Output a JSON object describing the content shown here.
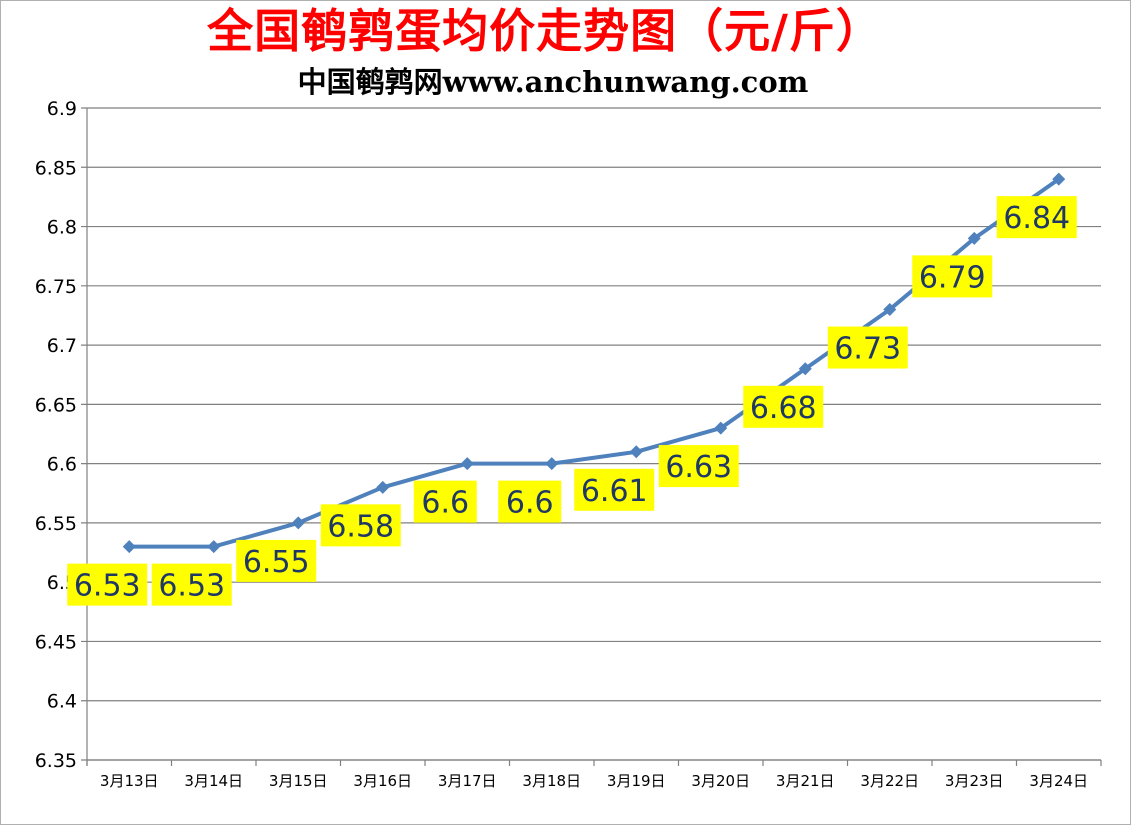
{
  "chart_data": {
    "type": "line",
    "title": "全国鹌鹑蛋均价走势图（元/斤）",
    "subtitle": "中国鹌鹑网www.anchunwang.com",
    "categories": [
      "3月13日",
      "3月14日",
      "3月15日",
      "3月16日",
      "3月17日",
      "3月18日",
      "3月19日",
      "3月20日",
      "3月21日",
      "3月22日",
      "3月23日",
      "3月24日"
    ],
    "series": [
      {
        "values": [
          6.53,
          6.53,
          6.55,
          6.58,
          6.6,
          6.6,
          6.61,
          6.63,
          6.68,
          6.73,
          6.79,
          6.84
        ]
      }
    ],
    "data_labels": [
      "6.53",
      "6.53",
      "6.55",
      "6.58",
      "6.6",
      "6.6",
      "6.61",
      "6.63",
      "6.68",
      "6.73",
      "6.79",
      "6.84"
    ],
    "y_ticks": [
      "6.35",
      "6.4",
      "6.45",
      "6.5",
      "6.55",
      "6.6",
      "6.65",
      "6.7",
      "6.75",
      "6.8",
      "6.85",
      "6.9"
    ],
    "ylim": [
      6.35,
      6.9
    ],
    "grid": true,
    "legend": "none",
    "colors": {
      "line": "#4f81bd",
      "label_bg": "#ffff00",
      "label_text": "#1f3864",
      "title": "#ff0000",
      "grid": "#808080"
    }
  }
}
